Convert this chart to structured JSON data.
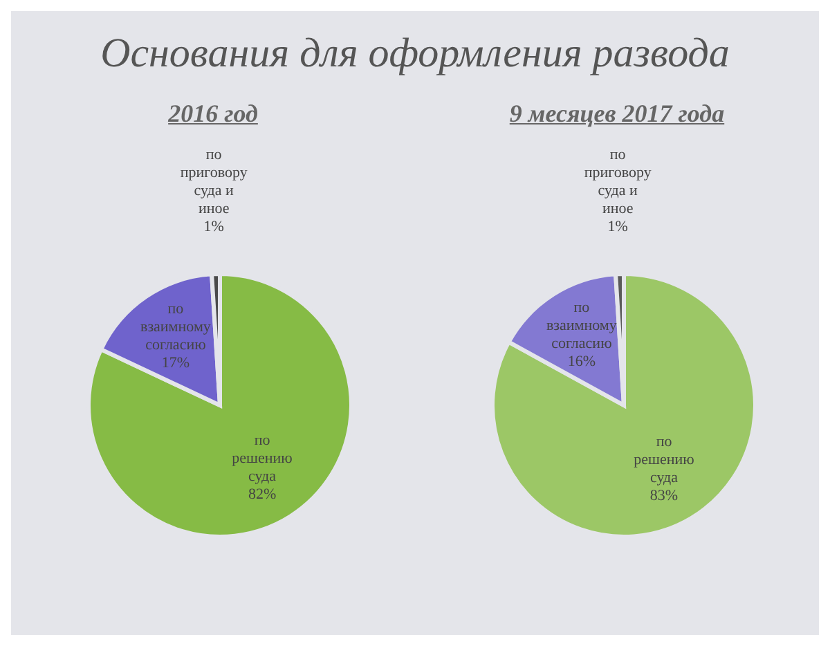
{
  "chart_data": [
    {
      "type": "pie",
      "title": "Основания для оформления развода",
      "subtitle": "2016 год",
      "categories": [
        "по решению суда",
        "по взаимному согласию",
        "по приговору суда и иное"
      ],
      "values": [
        82,
        17,
        1
      ],
      "value_labels": [
        "82%",
        "17%",
        "1%"
      ],
      "colors": [
        "#86bb45",
        "#6f63cc",
        "#4a4a4a"
      ],
      "legend": false
    },
    {
      "type": "pie",
      "subtitle": "9 месяцев 2017 года",
      "categories": [
        "по решению суда",
        "по взаимному согласию",
        "по приговору суда и иное"
      ],
      "values": [
        83,
        16,
        1
      ],
      "value_labels": [
        "83%",
        "16%",
        "1%"
      ],
      "colors": [
        "#9cc766",
        "#8379d2",
        "#5a5a5a"
      ],
      "legend": false
    }
  ]
}
